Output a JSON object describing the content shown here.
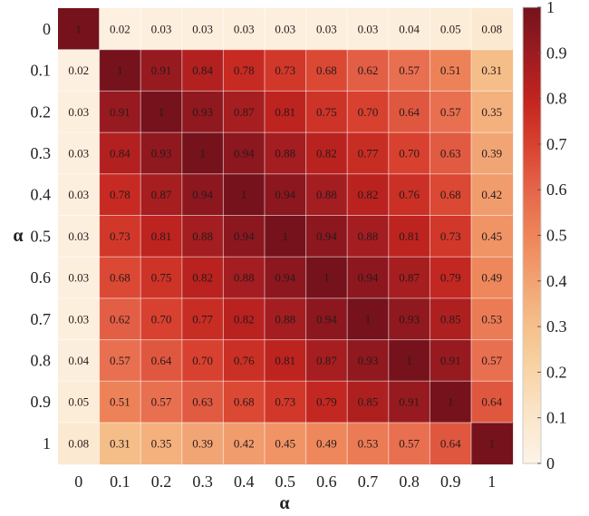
{
  "chart_data": {
    "type": "heatmap",
    "title": "",
    "xlabel": "α",
    "ylabel": "α",
    "x_categories": [
      "0",
      "0.1",
      "0.2",
      "0.3",
      "0.4",
      "0.5",
      "0.6",
      "0.7",
      "0.8",
      "0.9",
      "1"
    ],
    "y_categories": [
      "0",
      "0.1",
      "0.2",
      "0.3",
      "0.4",
      "0.5",
      "0.6",
      "0.7",
      "0.8",
      "0.9",
      "1"
    ],
    "values": [
      [
        1,
        0.02,
        0.03,
        0.03,
        0.03,
        0.03,
        0.03,
        0.03,
        0.04,
        0.05,
        0.08
      ],
      [
        0.02,
        1,
        0.91,
        0.84,
        0.78,
        0.73,
        0.68,
        0.62,
        0.57,
        0.51,
        0.31
      ],
      [
        0.03,
        0.91,
        1,
        0.93,
        0.87,
        0.81,
        0.75,
        0.7,
        0.64,
        0.57,
        0.35
      ],
      [
        0.03,
        0.84,
        0.93,
        1,
        0.94,
        0.88,
        0.82,
        0.77,
        0.7,
        0.63,
        0.39
      ],
      [
        0.03,
        0.78,
        0.87,
        0.94,
        1,
        0.94,
        0.88,
        0.82,
        0.76,
        0.68,
        0.42
      ],
      [
        0.03,
        0.73,
        0.81,
        0.88,
        0.94,
        1,
        0.94,
        0.88,
        0.81,
        0.73,
        0.45
      ],
      [
        0.03,
        0.68,
        0.75,
        0.82,
        0.88,
        0.94,
        1,
        0.94,
        0.87,
        0.79,
        0.49
      ],
      [
        0.03,
        0.62,
        0.7,
        0.77,
        0.82,
        0.88,
        0.94,
        1,
        0.93,
        0.85,
        0.53
      ],
      [
        0.04,
        0.57,
        0.64,
        0.7,
        0.76,
        0.81,
        0.87,
        0.93,
        1,
        0.91,
        0.57
      ],
      [
        0.05,
        0.51,
        0.57,
        0.63,
        0.68,
        0.73,
        0.79,
        0.85,
        0.91,
        1,
        0.64
      ],
      [
        0.08,
        0.31,
        0.35,
        0.39,
        0.42,
        0.45,
        0.49,
        0.53,
        0.57,
        0.64,
        1
      ]
    ],
    "value_labels": [
      [
        "1",
        "0.02",
        "0.03",
        "0.03",
        "0.03",
        "0.03",
        "0.03",
        "0.03",
        "0.04",
        "0.05",
        "0.08"
      ],
      [
        "0.02",
        "1",
        "0.91",
        "0.84",
        "0.78",
        "0.73",
        "0.68",
        "0.62",
        "0.57",
        "0.51",
        "0.31"
      ],
      [
        "0.03",
        "0.91",
        "1",
        "0.93",
        "0.87",
        "0.81",
        "0.75",
        "0.70",
        "0.64",
        "0.57",
        "0.35"
      ],
      [
        "0.03",
        "0.84",
        "0.93",
        "1",
        "0.94",
        "0.88",
        "0.82",
        "0.77",
        "0.70",
        "0.63",
        "0.39"
      ],
      [
        "0.03",
        "0.78",
        "0.87",
        "0.94",
        "1",
        "0.94",
        "0.88",
        "0.82",
        "0.76",
        "0.68",
        "0.42"
      ],
      [
        "0.03",
        "0.73",
        "0.81",
        "0.88",
        "0.94",
        "1",
        "0.94",
        "0.88",
        "0.81",
        "0.73",
        "0.45"
      ],
      [
        "0.03",
        "0.68",
        "0.75",
        "0.82",
        "0.88",
        "0.94",
        "1",
        "0.94",
        "0.87",
        "0.79",
        "0.49"
      ],
      [
        "0.03",
        "0.62",
        "0.70",
        "0.77",
        "0.82",
        "0.88",
        "0.94",
        "1",
        "0.93",
        "0.85",
        "0.53"
      ],
      [
        "0.04",
        "0.57",
        "0.64",
        "0.70",
        "0.76",
        "0.81",
        "0.87",
        "0.93",
        "1",
        "0.91",
        "0.57"
      ],
      [
        "0.05",
        "0.51",
        "0.57",
        "0.63",
        "0.68",
        "0.73",
        "0.79",
        "0.85",
        "0.91",
        "1",
        "0.64"
      ],
      [
        "0.08",
        "0.31",
        "0.35",
        "0.39",
        "0.42",
        "0.45",
        "0.49",
        "0.53",
        "0.57",
        "0.64",
        "1"
      ]
    ],
    "colorbar": {
      "range": [
        0,
        1
      ],
      "ticks": [
        "0",
        "0.1",
        "0.2",
        "0.3",
        "0.4",
        "0.5",
        "0.6",
        "0.7",
        "0.8",
        "0.9",
        "1"
      ],
      "colormap": "OrRd",
      "stops": [
        "#fdf3e6",
        "#fbe6cc",
        "#f8d5a8",
        "#f5c08a",
        "#f2a272",
        "#ee8559",
        "#e5654a",
        "#d8412f",
        "#c1241f",
        "#9b1b21",
        "#75121b"
      ]
    },
    "grid": false,
    "legend": "right"
  }
}
